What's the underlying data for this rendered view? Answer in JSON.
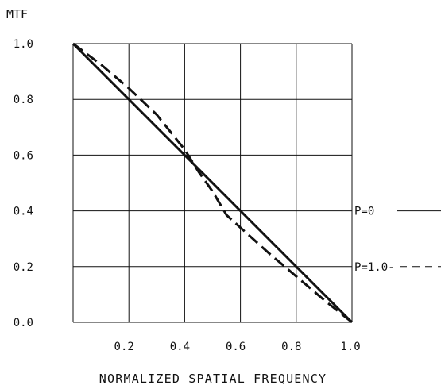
{
  "chart_data": {
    "type": "line",
    "ylabel": "MTF",
    "xlabel": "NORMALIZED SPATIAL FREQUENCY",
    "xlim": [
      0.0,
      1.0
    ],
    "ylim": [
      0.0,
      1.0
    ],
    "x_ticks": [
      0.2,
      0.4,
      0.6,
      0.8,
      1.0
    ],
    "x_tick_labels": [
      "0.2",
      "0.4",
      "0.6",
      "0.8",
      "1.0"
    ],
    "y_ticks": [
      0.0,
      0.2,
      0.4,
      0.6,
      0.8,
      1.0
    ],
    "y_tick_labels": [
      "0.0",
      "0.2",
      "0.4",
      "0.6",
      "0.8",
      "1.0"
    ],
    "grid": true,
    "legend": "right",
    "series": [
      {
        "name": "P=0",
        "style": "solid",
        "x": [
          0.0,
          1.0
        ],
        "y": [
          1.0,
          0.0
        ]
      },
      {
        "name": "P=1.0",
        "style": "dashed",
        "x": [
          0.0,
          0.1,
          0.2,
          0.3,
          0.4,
          0.45,
          0.5,
          0.55,
          0.6,
          0.7,
          0.8,
          0.9,
          1.0
        ],
        "y": [
          1.0,
          0.925,
          0.84,
          0.745,
          0.62,
          0.54,
          0.47,
          0.385,
          0.34,
          0.25,
          0.165,
          0.08,
          0.0
        ]
      }
    ],
    "color": "#111111"
  }
}
